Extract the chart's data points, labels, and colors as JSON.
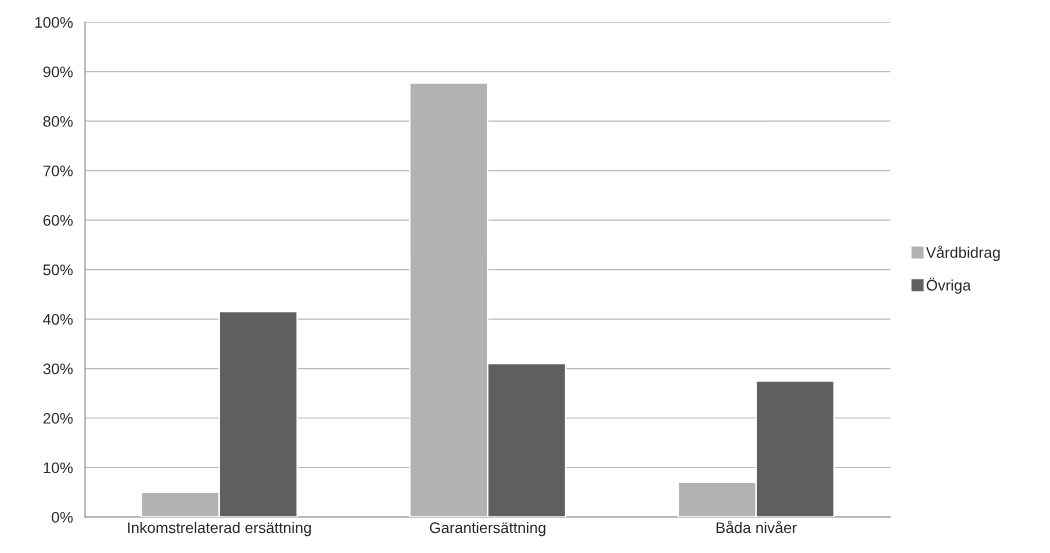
{
  "chart_data": {
    "type": "bar",
    "categories": [
      "Inkomstrelaterad ersättning",
      "Garantiersättning",
      "Båda nivåer"
    ],
    "series": [
      {
        "name": "Vårdbidrag",
        "color": "#b2b2b2",
        "values": [
          5,
          87.7,
          7
        ]
      },
      {
        "name": "Övriga",
        "color": "#5f5f5f",
        "values": [
          41.5,
          31,
          27.5
        ]
      }
    ],
    "ylim": [
      0,
      100
    ],
    "yticks": [
      {
        "value": 0,
        "label": "0%"
      },
      {
        "value": 10,
        "label": "10%"
      },
      {
        "value": 20,
        "label": "20%"
      },
      {
        "value": 30,
        "label": "30%"
      },
      {
        "value": 40,
        "label": "40%"
      },
      {
        "value": 50,
        "label": "50%"
      },
      {
        "value": 60,
        "label": "60%"
      },
      {
        "value": 70,
        "label": "70%"
      },
      {
        "value": 80,
        "label": "80%"
      },
      {
        "value": 90,
        "label": "90%"
      },
      {
        "value": 100,
        "label": "100%"
      }
    ],
    "grid": "y",
    "legend": "right"
  }
}
